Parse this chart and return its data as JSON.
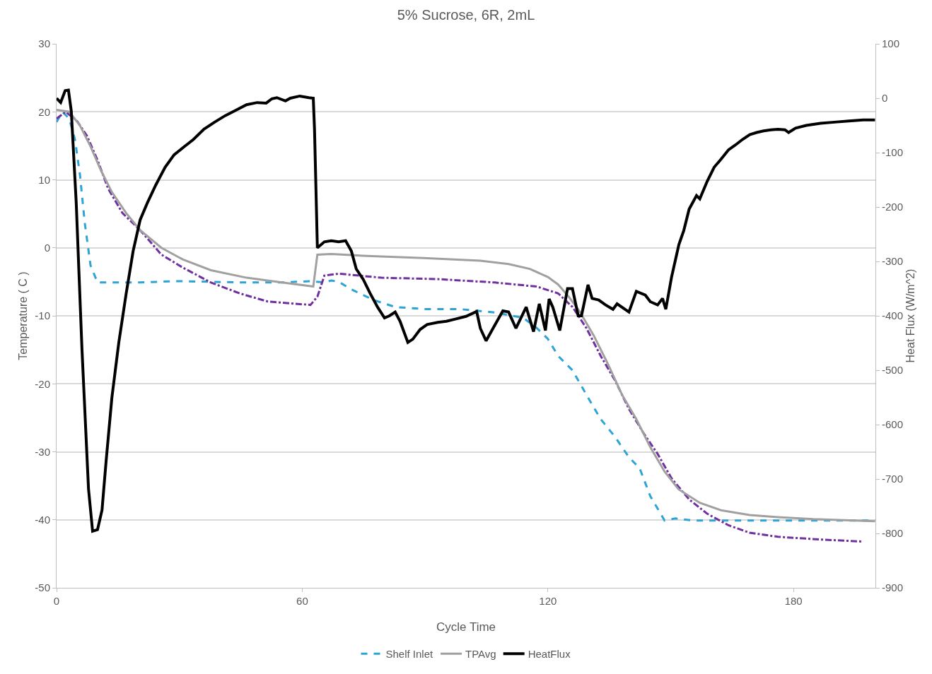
{
  "chart_data": {
    "type": "line",
    "title": "5% Sucrose, 6R, 2mL",
    "xlabel": "Cycle Time",
    "ylabel": "Temperature ( C )",
    "y2label": "Heat Flux (W/m^2)",
    "xlim": [
      0,
      200
    ],
    "xticks": [
      0,
      60,
      120,
      180
    ],
    "ylim": [
      -50,
      30
    ],
    "yticks": [
      -50,
      -40,
      -30,
      -20,
      -10,
      0,
      10,
      20,
      30
    ],
    "y2lim": [
      -900,
      100
    ],
    "y2ticks": [
      -900,
      -800,
      -700,
      -600,
      -500,
      -400,
      -300,
      -200,
      -100,
      0,
      100
    ],
    "grid": "y",
    "legend": "bottom",
    "series": [
      {
        "name": "Shelf Inlet",
        "color": "#2ea3d6",
        "line_style": "dashed",
        "x": [
          0,
          1.4,
          3.1,
          4.5,
          5.7,
          6.9,
          8.3,
          10,
          13.5,
          20.4,
          29.1,
          37.7,
          46.4,
          55,
          62,
          65.4,
          67.1,
          68.9,
          72.3,
          77.5,
          82.7,
          89.7,
          98.3,
          107,
          114,
          117.3,
          120,
          122.5,
          126,
          129.4,
          132.9,
          136.4,
          139.8,
          142.4,
          145,
          148.5,
          151.1,
          155.4,
          199.9
        ],
        "values": [
          18.5,
          20,
          19,
          15.9,
          10.8,
          3.6,
          -2.6,
          -5.1,
          -5.1,
          -5.1,
          -4.9,
          -5,
          -5.1,
          -5.1,
          -4.9,
          -5.1,
          -4.8,
          -5,
          -6.2,
          -7.7,
          -8.7,
          -9,
          -9,
          -9.5,
          -10.3,
          -11.8,
          -13.4,
          -15.9,
          -18,
          -21.6,
          -25.2,
          -27.8,
          -30.8,
          -32.4,
          -36.5,
          -40.1,
          -39.8,
          -40.1,
          -40.1
        ]
      },
      {
        "color": "#7030a0",
        "line_style": "dashdot",
        "x": [
          0,
          2.2,
          4.8,
          7.4,
          10,
          12.6,
          16.1,
          20.4,
          25.6,
          30.8,
          37.7,
          44.7,
          51.6,
          62,
          63.7,
          65.4,
          68.9,
          79.3,
          93.1,
          107,
          117.3,
          122.5,
          126,
          129.4,
          132.9,
          136.4,
          139.8,
          143.3,
          146.8,
          150.2,
          154.5,
          158.9,
          164.1,
          169.3,
          176.2,
          186.6,
          197
        ],
        "values": [
          19,
          20,
          18.8,
          16.5,
          12.9,
          8.7,
          5.1,
          2.6,
          -1,
          -2.9,
          -5.1,
          -6.7,
          -7.9,
          -8.4,
          -7.2,
          -4.1,
          -3.8,
          -4.4,
          -4.6,
          -5.1,
          -5.7,
          -6.7,
          -8.7,
          -11.8,
          -15.9,
          -19.5,
          -23.7,
          -27.2,
          -30.3,
          -33.9,
          -37,
          -39.1,
          -40.8,
          -41.9,
          -42.5,
          -42.9,
          -43.2
        ]
      },
      {
        "name": "TPAvg",
        "color": "#a0a0a0",
        "line_style": "solid",
        "x": [
          0,
          3.1,
          5.7,
          8.3,
          10.9,
          13.5,
          17,
          20.4,
          25.6,
          30.8,
          37.7,
          46.4,
          55,
          62.7,
          63.7,
          67.1,
          75.8,
          89.7,
          103.5,
          110.4,
          115.6,
          120,
          122.5,
          125.1,
          127.7,
          131.2,
          134.6,
          138.1,
          141.6,
          145,
          148.5,
          151.9,
          157.1,
          162.3,
          169.3,
          176.2,
          184.8,
          199.9
        ],
        "values": [
          20.3,
          20,
          18,
          14.9,
          11.3,
          8.2,
          5.1,
          2.6,
          0,
          -1.7,
          -3.3,
          -4.4,
          -5.1,
          -5.7,
          -1,
          -0.9,
          -1.2,
          -1.5,
          -1.9,
          -2.4,
          -3.1,
          -4.3,
          -5.4,
          -7.2,
          -9.3,
          -12.9,
          -17,
          -21.6,
          -25.2,
          -29.3,
          -32.9,
          -35.5,
          -37.5,
          -38.6,
          -39.3,
          -39.6,
          -39.9,
          -40.2
        ]
      },
      {
        "name": "HeatFlux",
        "color": "#000000",
        "line_style": "solid",
        "axis": "y2",
        "x": [
          0,
          1,
          2.1,
          2.9,
          3.6,
          4.8,
          6.2,
          7.8,
          8.8,
          10,
          11.1,
          12.1,
          13.5,
          15.2,
          17,
          18.7,
          20.4,
          22.2,
          24.2,
          26.5,
          28.7,
          31.2,
          33.4,
          36,
          38.6,
          41.2,
          43.8,
          46.4,
          49,
          51.2,
          52.6,
          53.8,
          55.9,
          57.1,
          59.4,
          61.6,
          62.7,
          63,
          63.7,
          65.4,
          67.1,
          68.9,
          70.6,
          72,
          73.2,
          74.9,
          76.6,
          78.4,
          80.1,
          81.3,
          82.7,
          83.9,
          85.8,
          87,
          88.8,
          90.5,
          93.1,
          95.2,
          97.4,
          100,
          102.6,
          103.5,
          104.9,
          106.6,
          109,
          110.4,
          112.2,
          114.7,
          116.5,
          117.9,
          119.4,
          120.3,
          121.2,
          122.9,
          124.8,
          126,
          127.4,
          128.2,
          129.8,
          130.8,
          132.4,
          134.1,
          135.9,
          136.9,
          139.8,
          141.6,
          143.8,
          145,
          146.8,
          148,
          148.8,
          150.2,
          152,
          153.2,
          154.5,
          156.3,
          157.1,
          158.9,
          160.6,
          162.3,
          164.1,
          165.8,
          167.5,
          169.3,
          171,
          172.7,
          174.5,
          176.2,
          177.9,
          178.8,
          180.5,
          183.1,
          186.6,
          190,
          193.5,
          197,
          199.9
        ],
        "values": [
          0,
          -8,
          14,
          15,
          -24,
          -192,
          -461,
          -718,
          -796,
          -793,
          -757,
          -667,
          -551,
          -449,
          -359,
          -281,
          -224,
          -192,
          -160,
          -127,
          -104,
          -89,
          -76,
          -57,
          -44,
          -32,
          -22,
          -12,
          -8,
          -9,
          -1,
          1,
          -5,
          0,
          4,
          1,
          0,
          -57,
          -275,
          -264,
          -262,
          -264,
          -262,
          -281,
          -314,
          -333,
          -359,
          -384,
          -404,
          -400,
          -393,
          -410,
          -449,
          -443,
          -425,
          -416,
          -412,
          -410,
          -406,
          -401,
          -392,
          -423,
          -446,
          -423,
          -391,
          -393,
          -423,
          -384,
          -429,
          -378,
          -427,
          -369,
          -384,
          -427,
          -350,
          -350,
          -400,
          -400,
          -343,
          -368,
          -371,
          -380,
          -388,
          -378,
          -393,
          -355,
          -362,
          -374,
          -380,
          -368,
          -388,
          -329,
          -269,
          -243,
          -204,
          -179,
          -185,
          -153,
          -127,
          -112,
          -95,
          -86,
          -76,
          -67,
          -63,
          -60,
          -58,
          -57,
          -58,
          -63,
          -55,
          -50,
          -46,
          -44,
          -42,
          -40,
          -40
        ]
      }
    ]
  }
}
